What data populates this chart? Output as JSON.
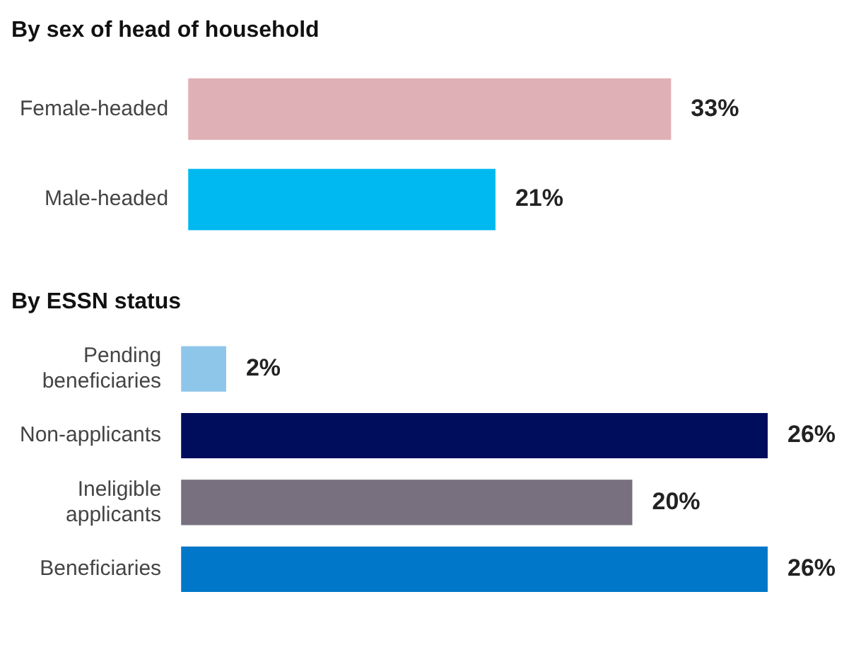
{
  "chart_data": [
    {
      "type": "bar",
      "orientation": "horizontal",
      "title": "By sex of head of household",
      "categories": [
        "Female-headed",
        "Male-headed"
      ],
      "values": [
        33,
        21
      ],
      "colors": [
        "#dfb0b5",
        "#00b9f0"
      ],
      "value_labels": [
        "33%",
        "21%"
      ]
    },
    {
      "type": "bar",
      "orientation": "horizontal",
      "title": "By ESSN status",
      "categories": [
        "Pending beneficiaries",
        "Non-applicants",
        "Ineligible applicants",
        "Beneficiaries"
      ],
      "values": [
        2,
        26,
        20,
        26
      ],
      "colors": [
        "#8ec6ea",
        "#000d5c",
        "#78707f",
        "#0077c8"
      ],
      "value_labels": [
        "2%",
        "26%",
        "20%",
        "26%"
      ]
    }
  ]
}
